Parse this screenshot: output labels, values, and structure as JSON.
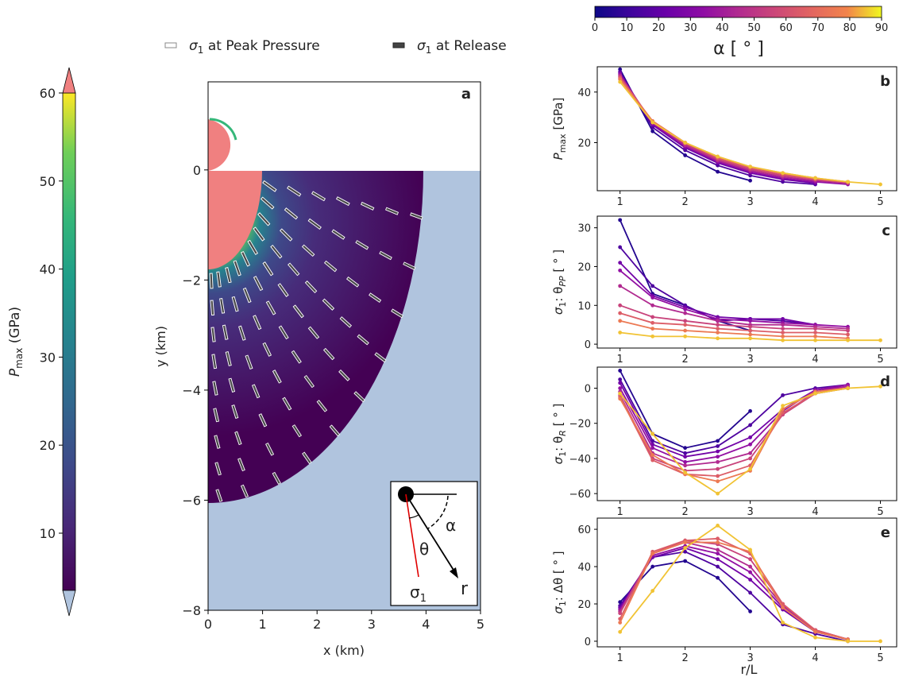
{
  "legend_top": {
    "peak_label": "σ",
    "peak_sub": "1",
    "peak_rest": " at Peak Pressure",
    "release_label": "σ",
    "release_sub": "1",
    "release_rest": " at Release"
  },
  "colorbar_left": {
    "label_main": "P",
    "label_sub": "max",
    "label_unit": " (GPa)",
    "ticks": [
      "10",
      "20",
      "30",
      "40",
      "50",
      "60"
    ],
    "range": [
      3.5,
      60
    ],
    "over_color": "#f08080",
    "under_color": "#b0c4de"
  },
  "colorbar_top": {
    "label": "α [ ° ]",
    "ticks": [
      "0",
      "10",
      "20",
      "30",
      "40",
      "50",
      "60",
      "70",
      "80",
      "90"
    ],
    "range": [
      0,
      90
    ]
  },
  "panel_a": {
    "letter": "a",
    "xlabel": "x (km)",
    "ylabel": "y (km)",
    "xticks": [
      "0",
      "1",
      "2",
      "3",
      "4",
      "5"
    ],
    "yticks": [
      "0",
      "−2",
      "−4",
      "−6",
      "−8"
    ],
    "xlim": [
      0,
      5
    ],
    "ylim": [
      -8,
      1.6
    ],
    "target_color": "#b0c4de",
    "projectile_color": "#f08080",
    "inset": {
      "alpha": "α",
      "theta": "θ",
      "r": "r",
      "sigma": "σ",
      "sigma_sub": "1"
    }
  },
  "chart_data": [
    {
      "type": "line",
      "panel": "b",
      "ylabel_main": "P",
      "ylabel_sub": "max",
      "ylabel_unit": " [GPa]",
      "xlabel": "",
      "xlim": [
        0.65,
        5.25
      ],
      "ylim": [
        1,
        50
      ],
      "yticks": [
        20,
        40
      ],
      "xticks": [
        1,
        2,
        3,
        4,
        5
      ],
      "series": [
        {
          "alpha": 5,
          "x": [
            1,
            1.5,
            2,
            2.5,
            3
          ],
          "y": [
            49,
            24.5,
            15,
            8.5,
            5
          ]
        },
        {
          "alpha": 15,
          "x": [
            1,
            1.5,
            2,
            2.5,
            3,
            3.5,
            4
          ],
          "y": [
            48,
            26,
            17,
            11,
            7,
            4.5,
            3.5
          ]
        },
        {
          "alpha": 25,
          "x": [
            1,
            1.5,
            2,
            2.5,
            3,
            3.5,
            4
          ],
          "y": [
            47.5,
            27,
            18,
            12,
            8,
            5.5,
            4
          ]
        },
        {
          "alpha": 35,
          "x": [
            1,
            1.5,
            2,
            2.5,
            3,
            3.5,
            4,
            4.5
          ],
          "y": [
            47,
            27.5,
            18.5,
            12.5,
            8.5,
            6,
            4.5,
            3.5
          ]
        },
        {
          "alpha": 45,
          "x": [
            1,
            1.5,
            2,
            2.5,
            3,
            3.5,
            4,
            4.5
          ],
          "y": [
            46.5,
            28,
            19,
            13,
            9,
            6.5,
            5,
            4
          ]
        },
        {
          "alpha": 55,
          "x": [
            1,
            1.5,
            2,
            2.5,
            3,
            3.5,
            4,
            4.5
          ],
          "y": [
            46,
            28,
            19.5,
            13.5,
            9.5,
            7,
            5.5,
            4
          ]
        },
        {
          "alpha": 65,
          "x": [
            1,
            1.5,
            2,
            2.5,
            3,
            3.5,
            4,
            4.5
          ],
          "y": [
            45.5,
            28.5,
            20,
            14,
            10,
            7.5,
            5.5,
            4.5
          ]
        },
        {
          "alpha": 75,
          "x": [
            1,
            1.5,
            2,
            2.5,
            3,
            3.5,
            4,
            4.5
          ],
          "y": [
            45,
            28.5,
            20,
            14.5,
            10.5,
            8,
            6,
            4.5
          ]
        },
        {
          "alpha": 85,
          "x": [
            1,
            1.5,
            2,
            2.5,
            3,
            3.5,
            4,
            4.5,
            5
          ],
          "y": [
            44,
            28,
            20,
            14.5,
            10.5,
            8,
            6,
            4.5,
            3.5
          ]
        }
      ]
    },
    {
      "type": "line",
      "panel": "c",
      "ylabel_main": "σ",
      "ylabel_sub": "1",
      "ylabel_mid": ": θ",
      "ylabel_sub2": "PP",
      "ylabel_unit": " [ ° ]",
      "xlabel": "",
      "xlim": [
        0.65,
        5.25
      ],
      "ylim": [
        -1,
        33
      ],
      "yticks": [
        0,
        10,
        20,
        30
      ],
      "xticks": [
        1,
        2,
        3,
        4,
        5
      ],
      "series": [
        {
          "alpha": 5,
          "x": [
            1,
            1.5,
            2,
            2.5,
            3
          ],
          "y": [
            32,
            13,
            10,
            6,
            3.5
          ]
        },
        {
          "alpha": 15,
          "x": [
            1,
            1.5,
            2,
            2.5,
            3,
            3.5,
            4
          ],
          "y": [
            25,
            15,
            10,
            6,
            6.5,
            6,
            5
          ]
        },
        {
          "alpha": 25,
          "x": [
            1,
            1.5,
            2,
            2.5,
            3,
            3.5,
            4
          ],
          "y": [
            21,
            12.5,
            9.5,
            7,
            6.5,
            6.5,
            5
          ]
        },
        {
          "alpha": 35,
          "x": [
            1,
            1.5,
            2,
            2.5,
            3,
            3.5,
            4,
            4.5
          ],
          "y": [
            19,
            12,
            9,
            6.5,
            6,
            5.5,
            5,
            4.5
          ]
        },
        {
          "alpha": 45,
          "x": [
            1,
            1.5,
            2,
            2.5,
            3,
            3.5,
            4,
            4.5
          ],
          "y": [
            15,
            10,
            8,
            6,
            5,
            5,
            4.5,
            4
          ]
        },
        {
          "alpha": 55,
          "x": [
            1,
            1.5,
            2,
            2.5,
            3,
            3.5,
            4,
            4.5
          ],
          "y": [
            10,
            7,
            6,
            5,
            4.5,
            4,
            4,
            3.5
          ]
        },
        {
          "alpha": 65,
          "x": [
            1,
            1.5,
            2,
            2.5,
            3,
            3.5,
            4,
            4.5
          ],
          "y": [
            8,
            5.5,
            5,
            4,
            3.5,
            3,
            3,
            2.5
          ]
        },
        {
          "alpha": 75,
          "x": [
            1,
            1.5,
            2,
            2.5,
            3,
            3.5,
            4,
            4.5
          ],
          "y": [
            6,
            4,
            3.5,
            3,
            2.5,
            2,
            2,
            1.5
          ]
        },
        {
          "alpha": 85,
          "x": [
            1,
            1.5,
            2,
            2.5,
            3,
            3.5,
            4,
            4.5,
            5
          ],
          "y": [
            3,
            2,
            2,
            1.5,
            1.5,
            1,
            1,
            1,
            1
          ]
        }
      ]
    },
    {
      "type": "line",
      "panel": "d",
      "ylabel_main": "σ",
      "ylabel_sub": "1",
      "ylabel_mid": ": θ",
      "ylabel_sub2": "R",
      "ylabel_unit": " [ ° ]",
      "xlabel": "",
      "xlim": [
        0.65,
        5.25
      ],
      "ylim": [
        -64,
        12
      ],
      "yticks": [
        -60,
        -40,
        -20,
        0
      ],
      "xticks": [
        1,
        2,
        3,
        4,
        5
      ],
      "series": [
        {
          "alpha": 5,
          "x": [
            1,
            1.5,
            2,
            2.5,
            3
          ],
          "y": [
            10,
            -26,
            -34,
            -30,
            -13
          ]
        },
        {
          "alpha": 15,
          "x": [
            1,
            1.5,
            2,
            2.5,
            3,
            3.5,
            4,
            4.5
          ],
          "y": [
            5,
            -30,
            -37,
            -33,
            -21,
            -4,
            0,
            2
          ]
        },
        {
          "alpha": 25,
          "x": [
            1,
            1.5,
            2,
            2.5,
            3,
            3.5,
            4,
            4.5
          ],
          "y": [
            3,
            -32,
            -39,
            -36,
            -28,
            -12,
            -1,
            1
          ]
        },
        {
          "alpha": 35,
          "x": [
            1,
            1.5,
            2,
            2.5,
            3,
            3.5,
            4,
            4.5
          ],
          "y": [
            0,
            -34,
            -42,
            -39,
            -32,
            -13,
            -1,
            2
          ]
        },
        {
          "alpha": 45,
          "x": [
            1,
            1.5,
            2,
            2.5,
            3,
            3.5,
            4,
            4.5
          ],
          "y": [
            -2,
            -37,
            -44,
            -42,
            -37,
            -15,
            -2,
            1
          ]
        },
        {
          "alpha": 55,
          "x": [
            1,
            1.5,
            2,
            2.5,
            3,
            3.5,
            4,
            4.5
          ],
          "y": [
            -4,
            -40,
            -47,
            -46,
            -40,
            -15,
            -3,
            0
          ]
        },
        {
          "alpha": 65,
          "x": [
            1,
            1.5,
            2,
            2.5,
            3,
            3.5,
            4,
            4.5
          ],
          "y": [
            -5,
            -41,
            -49,
            -50,
            -44,
            -14,
            -3,
            0
          ]
        },
        {
          "alpha": 75,
          "x": [
            1,
            1.5,
            2,
            2.5,
            3,
            3.5,
            4,
            4.5
          ],
          "y": [
            -6,
            -38,
            -49,
            -53,
            -47,
            -12,
            -2,
            0
          ]
        },
        {
          "alpha": 85,
          "x": [
            1,
            1.5,
            2,
            2.5,
            3,
            3.5,
            4,
            4.5,
            5
          ],
          "y": [
            -3,
            -26,
            -48,
            -60,
            -46,
            -10,
            -3,
            0,
            1
          ]
        }
      ]
    },
    {
      "type": "line",
      "panel": "e",
      "ylabel_main": "σ",
      "ylabel_sub": "1",
      "ylabel_mid": ": Δθ",
      "ylabel_sub2": "",
      "ylabel_unit": " [ ° ]",
      "xlabel": "r/L",
      "xlim": [
        0.65,
        5.25
      ],
      "ylim": [
        -3,
        66
      ],
      "yticks": [
        0,
        20,
        40,
        60
      ],
      "xticks": [
        1,
        2,
        3,
        4,
        5
      ],
      "series": [
        {
          "alpha": 5,
          "x": [
            1,
            1.5,
            2,
            2.5,
            3
          ],
          "y": [
            21,
            40,
            43,
            34,
            16
          ]
        },
        {
          "alpha": 15,
          "x": [
            1,
            1.5,
            2,
            2.5,
            3,
            3.5,
            4,
            4.5
          ],
          "y": [
            19,
            45,
            48,
            40,
            26,
            9,
            4,
            0
          ]
        },
        {
          "alpha": 25,
          "x": [
            1,
            1.5,
            2,
            2.5,
            3,
            3.5,
            4,
            4.5
          ],
          "y": [
            18,
            45,
            50,
            44,
            33,
            17,
            5,
            1
          ]
        },
        {
          "alpha": 35,
          "x": [
            1,
            1.5,
            2,
            2.5,
            3,
            3.5,
            4,
            4.5
          ],
          "y": [
            17,
            46,
            51,
            47,
            37,
            18,
            6,
            1
          ]
        },
        {
          "alpha": 45,
          "x": [
            1,
            1.5,
            2,
            2.5,
            3,
            3.5,
            4,
            4.5
          ],
          "y": [
            16,
            47,
            53,
            49,
            40,
            19,
            6,
            1
          ]
        },
        {
          "alpha": 55,
          "x": [
            1,
            1.5,
            2,
            2.5,
            3,
            3.5,
            4,
            4.5
          ],
          "y": [
            15,
            47,
            54,
            52,
            44,
            20,
            6,
            1
          ]
        },
        {
          "alpha": 65,
          "x": [
            1,
            1.5,
            2,
            2.5,
            3,
            3.5,
            4,
            4.5
          ],
          "y": [
            12,
            48,
            54,
            55,
            47,
            20,
            6,
            1
          ]
        },
        {
          "alpha": 75,
          "x": [
            1,
            1.5,
            2,
            2.5,
            3,
            3.5,
            4,
            4.5
          ],
          "y": [
            10,
            47,
            53,
            53,
            48,
            18,
            5,
            1
          ]
        },
        {
          "alpha": 85,
          "x": [
            1,
            1.5,
            2,
            2.5,
            3,
            3.5,
            4,
            4.5,
            5
          ],
          "y": [
            5,
            27,
            50,
            62,
            49,
            10,
            2,
            0,
            0
          ]
        }
      ]
    }
  ]
}
